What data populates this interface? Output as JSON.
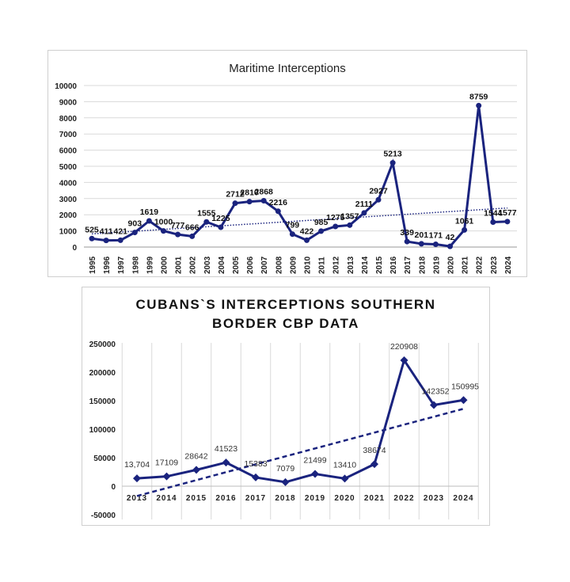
{
  "chart_data": [
    {
      "type": "line",
      "title": "Maritime Interceptions",
      "xlabel": "",
      "ylabel": "",
      "categories": [
        "1995",
        "1996",
        "1997",
        "1998",
        "1999",
        "2000",
        "2001",
        "2002",
        "2003",
        "2004",
        "2005",
        "2006",
        "2007",
        "2008",
        "2009",
        "2010",
        "2011",
        "2012",
        "2013",
        "2014",
        "2015",
        "2016",
        "2017",
        "2018",
        "2019",
        "2020",
        "2021",
        "2022",
        "2023",
        "2024"
      ],
      "values": [
        525,
        411,
        421,
        903,
        1619,
        1000,
        777,
        666,
        1555,
        1225,
        2712,
        2810,
        2868,
        2216,
        799,
        422,
        985,
        1275,
        1357,
        2111,
        2927,
        5213,
        339,
        201,
        171,
        42,
        1061,
        8759,
        1544,
        1577
      ],
      "ylim": [
        0,
        10000
      ],
      "yticks": [
        0,
        1000,
        2000,
        3000,
        4000,
        5000,
        6000,
        7000,
        8000,
        9000,
        10000
      ],
      "grid": "horizontal",
      "trendline": "linear dotted",
      "color": "#1a237e"
    },
    {
      "type": "line",
      "title": "CUBANS`S INTERCEPTIONS SOUTHERN BORDER CBP DATA",
      "xlabel": "",
      "ylabel": "",
      "categories": [
        "2013",
        "2014",
        "2015",
        "2016",
        "2017",
        "2018",
        "2019",
        "2020",
        "2021",
        "2022",
        "2023",
        "2024"
      ],
      "values": [
        13704,
        17109,
        28642,
        41523,
        15383,
        7079,
        21499,
        13410,
        38674,
        220908,
        142352,
        150995
      ],
      "labels": [
        "13,704",
        "17109",
        "28642",
        "41523",
        "15383",
        "7079",
        "21499",
        "13410",
        "38674",
        "220908",
        "142352",
        "150995"
      ],
      "ylim": [
        -50000,
        250000
      ],
      "yticks": [
        -50000,
        0,
        50000,
        100000,
        150000,
        200000,
        250000
      ],
      "grid": "vertical",
      "trendline": "linear dashed",
      "color": "#1a237e"
    }
  ]
}
